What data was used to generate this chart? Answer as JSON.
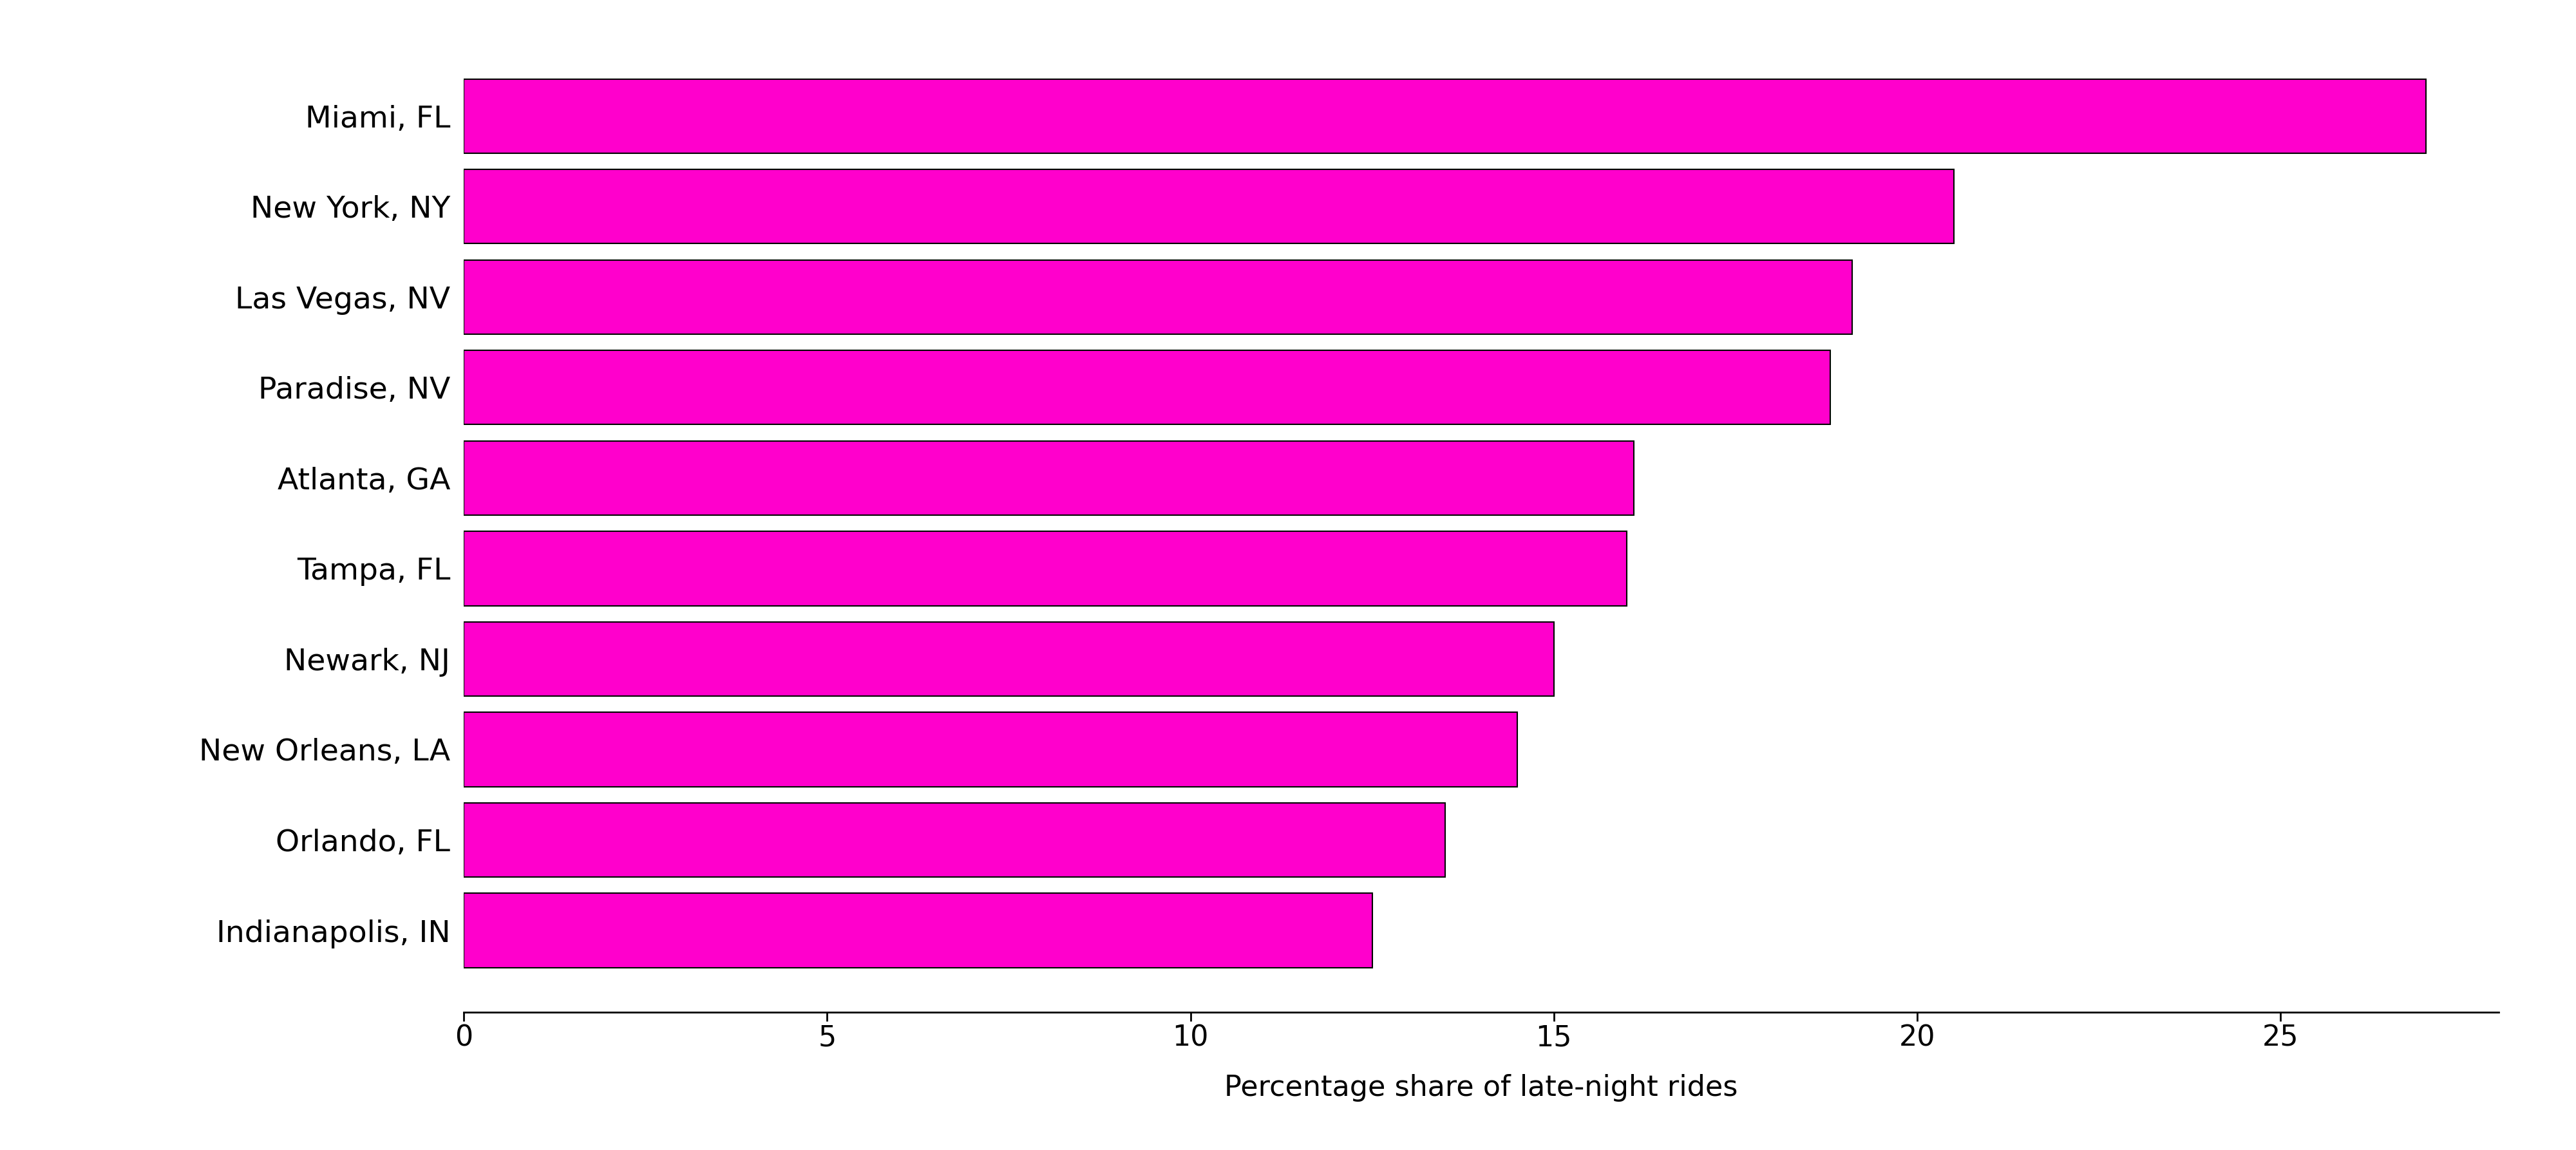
{
  "categories": [
    "Miami, FL",
    "New York, NY",
    "Las Vegas, NV",
    "Paradise, NV",
    "Atlanta, GA",
    "Tampa, FL",
    "Newark, NJ",
    "New Orleans, LA",
    "Orlando, FL",
    "Indianapolis, IN"
  ],
  "values": [
    27.0,
    20.5,
    19.1,
    18.8,
    16.1,
    16.0,
    15.0,
    14.5,
    13.5,
    12.5
  ],
  "bar_color": "#FF00CC",
  "bar_edgecolor": "#000000",
  "bar_linewidth": 1.5,
  "xlabel": "Percentage share of late-night rides",
  "xlim": [
    0,
    28
  ],
  "xticks": [
    0,
    5,
    10,
    15,
    20,
    25
  ],
  "background_color": "#ffffff",
  "xlabel_fontsize": 32,
  "ytick_fontsize": 34,
  "xtick_fontsize": 32,
  "bar_height": 0.82
}
